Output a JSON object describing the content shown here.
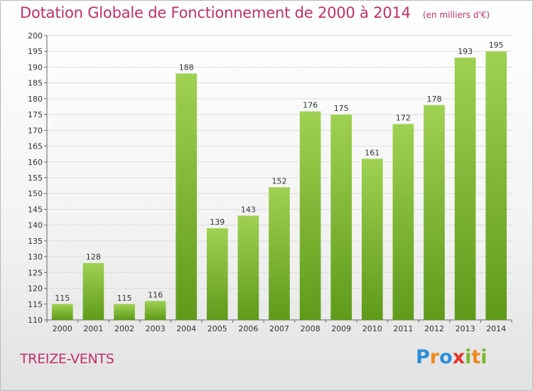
{
  "header": {
    "title": "Dotation Globale de Fonctionnement de 2000 à 2014",
    "subtitle": "(en milliers d'€)"
  },
  "footer": {
    "commune": "TREIZE-VENTS",
    "logo": [
      "P",
      "r",
      "o",
      "x",
      "i",
      "t",
      "i"
    ]
  },
  "colors": {
    "title": "#c0306a",
    "bar_top": "#9fd152",
    "bar_bottom": "#5f9a1a",
    "grid": "#dddddd",
    "logo_blue": "#2c8fd6",
    "logo_orange": "#f08a1c",
    "logo_red": "#e2332a",
    "logo_green": "#7cb530"
  },
  "chart_data": {
    "type": "bar",
    "categories": [
      "2000",
      "2001",
      "2002",
      "2003",
      "2004",
      "2005",
      "2006",
      "2007",
      "2008",
      "2009",
      "2010",
      "2011",
      "2012",
      "2013",
      "2014"
    ],
    "values": [
      115,
      128,
      115,
      116,
      188,
      139,
      143,
      152,
      176,
      175,
      161,
      172,
      178,
      193,
      195
    ],
    "title": "Dotation Globale de Fonctionnement de 2000 à 2014",
    "subtitle": "(en milliers d'€)",
    "ylim": [
      110,
      200
    ],
    "yticks": [
      110,
      115,
      120,
      125,
      130,
      135,
      140,
      145,
      150,
      155,
      160,
      165,
      170,
      175,
      180,
      185,
      190,
      195,
      200
    ],
    "grid": true,
    "legend": "none"
  }
}
